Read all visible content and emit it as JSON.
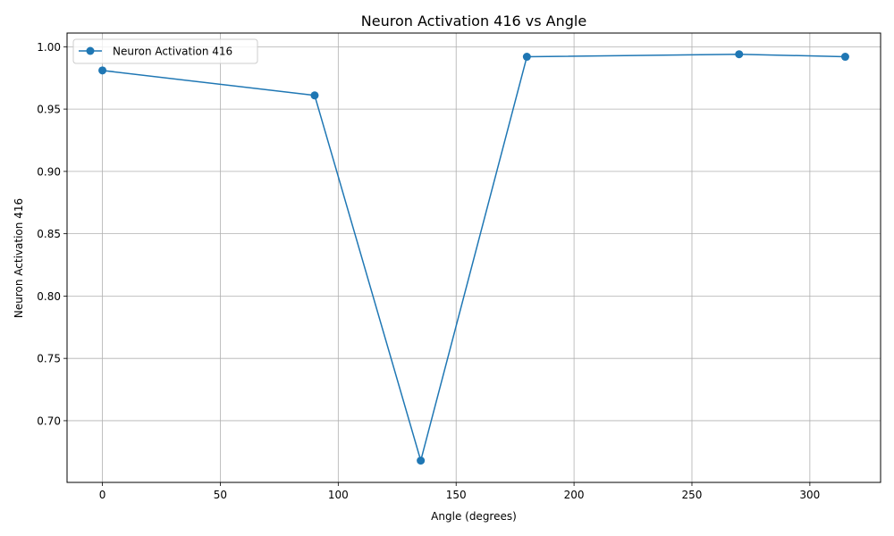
{
  "chart_data": {
    "type": "line",
    "title": "Neuron Activation 416 vs Angle",
    "xlabel": "Angle (degrees)",
    "ylabel": "Neuron Activation 416",
    "xlim": [
      -15,
      330
    ],
    "ylim": [
      0.6505,
      1.011
    ],
    "xticks": [
      0,
      50,
      100,
      150,
      200,
      250,
      300
    ],
    "yticks": [
      0.7,
      0.75,
      0.8,
      0.85,
      0.9,
      0.95,
      1.0
    ],
    "ytick_labels": [
      "0.70",
      "0.75",
      "0.80",
      "0.85",
      "0.90",
      "0.95",
      "1.00"
    ],
    "grid": true,
    "legend_position": "top-left",
    "series": [
      {
        "name": "Neuron Activation 416",
        "color": "#1f77b4",
        "marker": "circle",
        "x": [
          0,
          90,
          135,
          180,
          270,
          315
        ],
        "y": [
          0.981,
          0.961,
          0.668,
          0.992,
          0.994,
          0.992
        ]
      }
    ]
  }
}
